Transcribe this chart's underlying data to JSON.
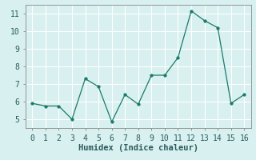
{
  "x": [
    0,
    1,
    2,
    3,
    4,
    5,
    6,
    7,
    8,
    9,
    10,
    11,
    12,
    13,
    14,
    15,
    16
  ],
  "y": [
    5.9,
    5.75,
    5.75,
    5.0,
    7.3,
    6.85,
    4.85,
    6.4,
    5.85,
    7.5,
    7.5,
    8.5,
    11.15,
    10.6,
    10.2,
    5.9,
    6.4
  ],
  "line_color": "#1a7a6a",
  "marker": "o",
  "marker_size": 2.5,
  "xlabel": "Humidex (Indice chaleur)",
  "ylim": [
    4.5,
    11.5
  ],
  "xlim": [
    -0.5,
    16.5
  ],
  "yticks": [
    5,
    6,
    7,
    8,
    9,
    10,
    11
  ],
  "xticks": [
    0,
    1,
    2,
    3,
    4,
    5,
    6,
    7,
    8,
    9,
    10,
    11,
    12,
    13,
    14,
    15,
    16
  ],
  "bg_color": "#d8f0f0",
  "grid_color": "#ffffff",
  "spine_color": "#888888",
  "xlabel_fontsize": 7.5,
  "tick_fontsize": 7
}
